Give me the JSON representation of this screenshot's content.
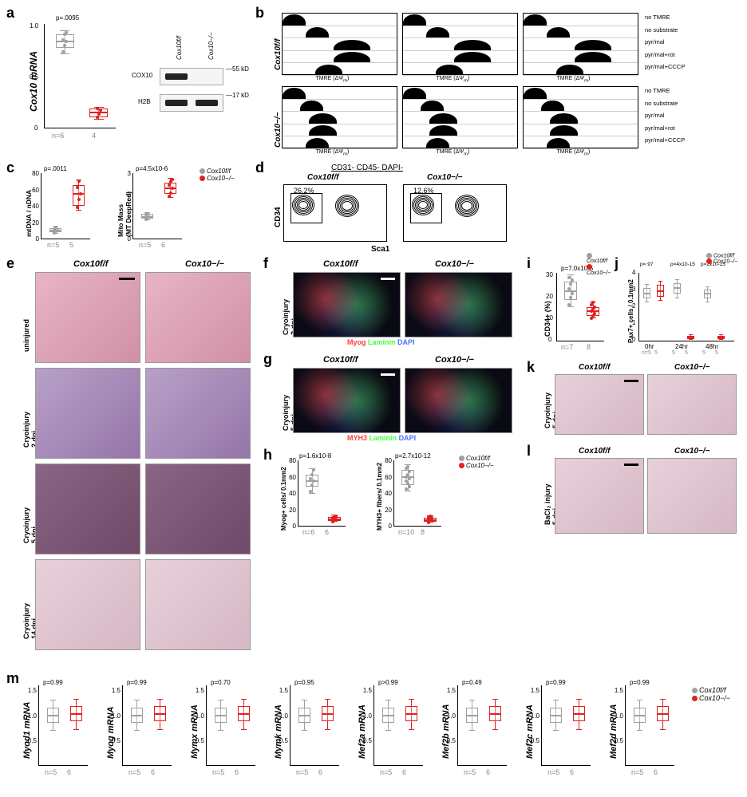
{
  "colors": {
    "control": "#a0a0a0",
    "knockout": "#e02020",
    "axis": "#000000",
    "bg": "#ffffff"
  },
  "genotypes": {
    "control": "Cox10f/f",
    "knockout": "Cox10−/−"
  },
  "panel_a": {
    "type": "boxplot",
    "ylabel": "Cox10 mRNA",
    "ylim": [
      0,
      1.2
    ],
    "yticks": [
      0.0,
      0.5,
      1.0
    ],
    "pvalue": "p=.0095",
    "n_labels": [
      "n=6",
      "4"
    ],
    "groups": [
      {
        "color": "#a0a0a0",
        "median": 1.0,
        "q1": 0.92,
        "q3": 1.08,
        "min": 0.85,
        "max": 1.12,
        "points": [
          0.88,
          0.95,
          1.0,
          1.02,
          1.08,
          1.1
        ]
      },
      {
        "color": "#e02020",
        "median": 0.18,
        "q1": 0.12,
        "q3": 0.22,
        "min": 0.1,
        "max": 0.24,
        "points": [
          0.12,
          0.16,
          0.2,
          0.22
        ]
      }
    ],
    "blot": {
      "lanes": [
        "Cox10f/f",
        "Cox10−/−"
      ],
      "rows": [
        {
          "label": "COX10",
          "marker": "55 kD",
          "bands": [
            true,
            false
          ]
        },
        {
          "label": "H2B",
          "marker": "17 kD",
          "bands": [
            true,
            true
          ]
        }
      ]
    }
  },
  "panel_b": {
    "type": "facs-histogram",
    "xlabel": "TMRE (ΔΨm)",
    "row_labels": [
      "no TMRE",
      "no substrate",
      "pyr/mal",
      "pyr/mal+rot",
      "pyr/mal+CCCP"
    ],
    "genotype_rows": [
      "Cox10f/f",
      "Cox10−/−"
    ],
    "replicates": 3,
    "peaks": {
      "Cox10f/f": [
        [
          0.1,
          0.05
        ],
        [
          0.3,
          0.05
        ],
        [
          0.6,
          0.08
        ],
        [
          0.6,
          0.08
        ],
        [
          0.4,
          0.06
        ]
      ],
      "Cox10−/−": [
        [
          0.1,
          0.05
        ],
        [
          0.25,
          0.05
        ],
        [
          0.35,
          0.06
        ],
        [
          0.35,
          0.06
        ],
        [
          0.3,
          0.05
        ]
      ]
    }
  },
  "panel_c": {
    "charts": [
      {
        "ylabel": "mtDNA / nDNA",
        "ylim": [
          0,
          80
        ],
        "yticks": [
          0,
          20,
          40,
          60,
          80
        ],
        "pvalue": "p=.0011",
        "n_labels": [
          "n=5",
          "5"
        ],
        "groups": [
          {
            "color": "#a0a0a0",
            "median": 10,
            "q1": 8,
            "q3": 13,
            "min": 6,
            "max": 15,
            "points": [
              7,
              9,
              10,
              12,
              14
            ]
          },
          {
            "color": "#e02020",
            "median": 55,
            "q1": 40,
            "q3": 65,
            "min": 35,
            "max": 72,
            "points": [
              38,
              48,
              55,
              62,
              70
            ]
          }
        ]
      },
      {
        "ylabel": "Mito Mass\\n(MT DeepRed)",
        "ylim": [
          0,
          3
        ],
        "yticks": [
          0,
          1,
          2,
          3
        ],
        "pvalue": "p=4.5x10-6",
        "n_labels": [
          "n=5",
          "6"
        ],
        "groups": [
          {
            "color": "#a0a0a0",
            "median": 1.0,
            "q1": 0.9,
            "q3": 1.12,
            "min": 0.85,
            "max": 1.18,
            "points": [
              0.88,
              0.95,
              1.0,
              1.08,
              1.15
            ]
          },
          {
            "color": "#e02020",
            "median": 2.3,
            "q1": 2.05,
            "q3": 2.55,
            "min": 1.9,
            "max": 2.75,
            "points": [
              1.95,
              2.1,
              2.3,
              2.45,
              2.6,
              2.7
            ]
          }
        ]
      }
    ]
  },
  "panel_d": {
    "type": "facs-contour",
    "gate_label": "CD31- CD45- DAPI-",
    "xlabel": "Sca1",
    "ylabel": "CD34",
    "plots": [
      {
        "title": "Cox10f/f",
        "percent": "26.2%"
      },
      {
        "title": "Cox10−/−",
        "percent": "12.6%"
      }
    ]
  },
  "panel_e": {
    "type": "histology-grid",
    "col_labels": [
      "Cox10f/f",
      "Cox10−/−"
    ],
    "row_labels": [
      "uninjured",
      "Cryoinjury\\n2 dpi",
      "Cryoinjury\\n5 dpi",
      "Cryoinjury\\n14 dpi"
    ]
  },
  "panel_f": {
    "type": "fluor",
    "row_label": "Cryoinjury\\n2 dpi",
    "col_labels": [
      "Cox10f/f",
      "Cox10−/−"
    ],
    "legend": "Myog Laminin DAPI",
    "legend_colors": [
      "#ff4040",
      "#40ff40",
      "#5070ff"
    ]
  },
  "panel_g": {
    "type": "fluor",
    "row_label": "Cryoinjury\\n5 dpi",
    "col_labels": [
      "Cox10f/f",
      "Cox10−/−"
    ],
    "legend": "MYH3 Laminin DAPI",
    "legend_colors": [
      "#ff4040",
      "#40ff40",
      "#5070ff"
    ]
  },
  "panel_h": {
    "charts": [
      {
        "ylabel": "Myog+ cells/ 0.1mm2",
        "ylim": [
          0,
          80
        ],
        "yticks": [
          0,
          20,
          40,
          60,
          80
        ],
        "pvalue": "p=1.6x10-8",
        "n_labels": [
          "n=6",
          "6"
        ],
        "groups": [
          {
            "color": "#a0a0a0",
            "median": 55,
            "q1": 48,
            "q3": 62,
            "min": 40,
            "max": 70,
            "points": [
              42,
              50,
              55,
              58,
              62,
              68
            ]
          },
          {
            "color": "#e02020",
            "median": 8,
            "q1": 6,
            "q3": 11,
            "min": 5,
            "max": 13,
            "points": [
              5,
              7,
              8,
              10,
              11,
              12
            ]
          }
        ]
      },
      {
        "ylabel": "MYH3+ fibers/ 0.1mm2",
        "ylim": [
          0,
          80
        ],
        "yticks": [
          0,
          20,
          40,
          60,
          80
        ],
        "pvalue": "p=2.7x10-12",
        "n_labels": [
          "n=10",
          "8"
        ],
        "groups": [
          {
            "color": "#a0a0a0",
            "median": 60,
            "q1": 50,
            "q3": 68,
            "min": 42,
            "max": 75,
            "points": [
              45,
              52,
              58,
              60,
              62,
              66,
              70,
              72,
              48,
              55
            ]
          },
          {
            "color": "#e02020",
            "median": 7,
            "q1": 5,
            "q3": 10,
            "min": 4,
            "max": 12,
            "points": [
              4,
              6,
              7,
              8,
              9,
              10,
              11,
              12
            ]
          }
        ]
      }
    ]
  },
  "panel_i": {
    "ylabel": "CD34+ (%)",
    "ylim": [
      0,
      30
    ],
    "yticks": [
      0,
      10,
      20,
      30
    ],
    "pvalue": "p=7.0x10-5",
    "n_labels": [
      "n=7",
      "8"
    ],
    "groups": [
      {
        "color": "#a0a0a0",
        "median": 22,
        "q1": 18,
        "q3": 26,
        "min": 15,
        "max": 29,
        "points": [
          16,
          19,
          21,
          23,
          25,
          27,
          28
        ]
      },
      {
        "color": "#e02020",
        "median": 13,
        "q1": 11,
        "q3": 15,
        "min": 10,
        "max": 17,
        "points": [
          10,
          11,
          12,
          13,
          14,
          15,
          16,
          17
        ]
      }
    ]
  },
  "panel_j": {
    "ylabel": "Pax7+ cells / 0.1mm2",
    "ylim": [
      0,
      4
    ],
    "yticks": [
      0,
      1,
      2,
      3,
      4
    ],
    "timepoints": [
      "0hr",
      "24hr",
      "48hr"
    ],
    "pvalues": [
      "p=.97",
      "p=4x10-15",
      "p=2x10-15"
    ],
    "n_pairs": [
      [
        "n=5",
        "5"
      ],
      [
        "5",
        "5"
      ],
      [
        "5",
        "5"
      ]
    ],
    "groups": [
      [
        {
          "color": "#a0a0a0",
          "median": 2.8,
          "q1": 2.5,
          "q3": 3.1,
          "min": 2.3,
          "max": 3.3
        },
        {
          "color": "#e02020",
          "median": 2.9,
          "q1": 2.6,
          "q3": 3.3,
          "min": 2.4,
          "max": 3.5
        }
      ],
      [
        {
          "color": "#a0a0a0",
          "median": 3.1,
          "q1": 2.8,
          "q3": 3.4,
          "min": 2.5,
          "max": 3.6
        },
        {
          "color": "#e02020",
          "median": 0.2,
          "q1": 0.1,
          "q3": 0.3,
          "min": 0.05,
          "max": 0.35
        }
      ],
      [
        {
          "color": "#a0a0a0",
          "median": 2.8,
          "q1": 2.5,
          "q3": 3.0,
          "min": 2.3,
          "max": 3.2
        },
        {
          "color": "#e02020",
          "median": 0.2,
          "q1": 0.1,
          "q3": 0.3,
          "min": 0.05,
          "max": 0.35
        }
      ]
    ]
  },
  "panel_k": {
    "type": "histology",
    "row_label": "Cryoinjury\\n5 dpi",
    "col_labels": [
      "Cox10f/f",
      "Cox10−/−"
    ]
  },
  "panel_l": {
    "type": "histology",
    "row_label": "BaCl2 injury\\n5 dpi",
    "col_labels": [
      "Cox10f/f",
      "Cox10−/−"
    ]
  },
  "panel_m": {
    "type": "boxplot-row",
    "genes": [
      "Myod1",
      "Myog",
      "Mymx",
      "Mymk",
      "Mef2a",
      "Mef2b",
      "Mef2c",
      "Mef2d"
    ],
    "ylabel_suffix": " mRNA",
    "ylim": [
      0,
      1.6
    ],
    "yticks": [
      0.5,
      1.0,
      1.5
    ],
    "pvalues": [
      "p=0.99",
      "p=0.99",
      "p=0.70",
      "p=0.95",
      "p>0.99",
      "p=0.49",
      "p=0.99",
      "p=0.99"
    ],
    "n_labels": [
      "n=5",
      "6"
    ],
    "groups_template": [
      {
        "color": "#a0a0a0",
        "median": 1.0,
        "q1": 0.85,
        "q3": 1.15,
        "min": 0.7,
        "max": 1.3
      },
      {
        "color": "#e02020",
        "median": 1.02,
        "q1": 0.88,
        "q3": 1.18,
        "min": 0.72,
        "max": 1.32
      }
    ]
  }
}
